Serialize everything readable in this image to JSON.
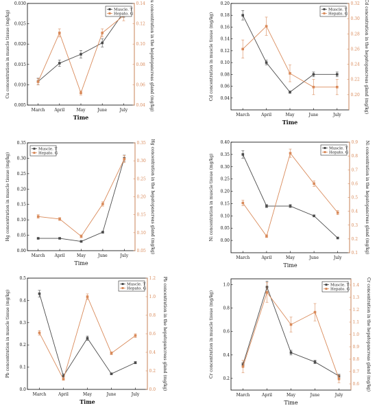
{
  "colors": {
    "muscle": "#4a4a4a",
    "hepato": "#d98a5a",
    "axis": "#000000"
  },
  "chart_data": [
    {
      "type": "line",
      "categories": [
        "March",
        "April",
        "May",
        "June",
        "July"
      ],
      "xlabel": "Time",
      "ylabel": "Cu concentration in muscle tissue (mg/kg)",
      "y2label": "Cu concentration in the hepatopancreas gland (mg/kg)",
      "ylim": [
        0.005,
        0.03
      ],
      "yticks": [
        "0.005",
        "0.010",
        "0.015",
        "0.020",
        "0.025",
        "0.030"
      ],
      "y2lim": [
        0.04,
        0.14
      ],
      "y2ticks": [
        "0.04",
        "0.06",
        "0.08",
        "0.10",
        "0.12",
        "0.14"
      ],
      "legend_position": "top-right",
      "series": [
        {
          "name": "Muscle. T",
          "axis": "left",
          "values": [
            0.0108,
            0.0153,
            0.0175,
            0.0203,
            0.0278
          ],
          "errors": [
            0.0008,
            0.0008,
            0.0009,
            0.001,
            0.0012
          ]
        },
        {
          "name": "Hepato. G",
          "axis": "right",
          "values": [
            0.063,
            0.111,
            0.052,
            0.111,
            0.128
          ],
          "errors": [
            0.003,
            0.004,
            0.002,
            0.004,
            0.005
          ]
        }
      ]
    },
    {
      "type": "line",
      "categories": [
        "March",
        "April",
        "May",
        "June",
        "July"
      ],
      "xlabel": "Time",
      "ylabel": "Cd concentration in muscle tissue (mg/kg)",
      "y2label": "Cd concentration in the hepatopancreas gland (mg/kg)",
      "ylim": [
        0.02,
        0.2
      ],
      "yticks": [
        "0.04",
        "0.06",
        "0.08",
        "0.10",
        "0.12",
        "0.14",
        "0.16",
        "0.18",
        "0.20"
      ],
      "y2lim": [
        0.18,
        0.32
      ],
      "y2ticks": [
        "0.20",
        "0.22",
        "0.24",
        "0.26",
        "0.28",
        "0.30",
        "0.32"
      ],
      "legend_position": "top-right",
      "series": [
        {
          "name": "Muscle. T",
          "axis": "left",
          "values": [
            0.18,
            0.1,
            0.05,
            0.08,
            0.08
          ],
          "errors": [
            0.008,
            0.004,
            0.002,
            0.004,
            0.004
          ]
        },
        {
          "name": "Hepato. G",
          "axis": "right",
          "values": [
            0.26,
            0.29,
            0.228,
            0.21,
            0.21
          ],
          "errors": [
            0.012,
            0.012,
            0.011,
            0.01,
            0.01
          ]
        }
      ]
    },
    {
      "type": "line",
      "categories": [
        "March",
        "April",
        "May",
        "June",
        "July"
      ],
      "xlabel": "Time",
      "ylabel": "Hg concentration in muscle tissue (mg/kg)",
      "y2label": "Hg concentration in the hepatopancreas gland (mg/kg)",
      "ylim": [
        0.0,
        0.35
      ],
      "yticks": [
        "0.00",
        "0.05",
        "0.10",
        "0.15",
        "0.20",
        "0.25",
        "0.30",
        "0.35"
      ],
      "y2lim": [
        0.05,
        0.35
      ],
      "y2ticks": [
        "0.05",
        "0.10",
        "0.15",
        "0.20",
        "0.25",
        "0.30",
        "0.35"
      ],
      "legend_position": "top-left",
      "series": [
        {
          "name": "Muscle. T",
          "axis": "left",
          "values": [
            0.04,
            0.04,
            0.03,
            0.06,
            0.3
          ],
          "errors": [
            0.002,
            0.002,
            0.002,
            0.003,
            0.01
          ]
        },
        {
          "name": "Hepato. G",
          "axis": "right",
          "values": [
            0.145,
            0.138,
            0.09,
            0.18,
            0.305
          ],
          "errors": [
            0.005,
            0.004,
            0.004,
            0.006,
            0.01
          ]
        }
      ]
    },
    {
      "type": "line",
      "categories": [
        "March",
        "April",
        "May",
        "June",
        "July"
      ],
      "xlabel": "Time",
      "ylabel": "Ni concentration in muscle tissue (mg/kg)",
      "y2label": "Ni concentration in the hepatopancreas gland (mg/kg)",
      "ylim": [
        -0.05,
        0.4
      ],
      "yticks": [
        "0.00",
        "0.05",
        "0.10",
        "0.15",
        "0.20",
        "0.25",
        "0.30",
        "0.35",
        "0.40"
      ],
      "y2lim": [
        0.1,
        0.9
      ],
      "y2ticks": [
        "0.1",
        "0.2",
        "0.3",
        "0.4",
        "0.5",
        "0.6",
        "0.7",
        "0.8",
        "0.9"
      ],
      "legend_position": "top-right",
      "series": [
        {
          "name": "Muscle. T",
          "axis": "left",
          "values": [
            0.35,
            0.14,
            0.14,
            0.1,
            0.01
          ],
          "errors": [
            0.015,
            0.006,
            0.006,
            0.004,
            0.002
          ]
        },
        {
          "name": "Hepato. G",
          "axis": "right",
          "values": [
            0.46,
            0.22,
            0.82,
            0.6,
            0.39
          ],
          "errors": [
            0.02,
            0.01,
            0.03,
            0.02,
            0.015
          ]
        }
      ]
    },
    {
      "type": "line",
      "categories": [
        "March",
        "April",
        "May",
        "June",
        "July"
      ],
      "xlabel": "Time",
      "ylabel": "Pb concentration in muscle tissue (mg/kg)",
      "y2label": "Pb concentration in the hepatopancreas gland (mg/kg)",
      "ylim": [
        0.0,
        0.5
      ],
      "yticks": [
        "0.0",
        "0.1",
        "0.2",
        "0.3",
        "0.4",
        "0.5"
      ],
      "y2lim": [
        0.0,
        1.2
      ],
      "y2ticks": [
        "0.0",
        "0.2",
        "0.4",
        "0.6",
        "0.8",
        "1.0",
        "1.2"
      ],
      "legend_position": "top-right",
      "series": [
        {
          "name": "Muscle. T",
          "axis": "left",
          "values": [
            0.43,
            0.06,
            0.23,
            0.07,
            0.12
          ],
          "errors": [
            0.015,
            0.01,
            0.01,
            0.003,
            0.005
          ]
        },
        {
          "name": "Hepato. G",
          "axis": "right",
          "values": [
            0.61,
            0.11,
            1.0,
            0.39,
            0.58
          ],
          "errors": [
            0.025,
            0.01,
            0.03,
            0.015,
            0.02
          ]
        }
      ]
    },
    {
      "type": "line",
      "categories": [
        "March",
        "April",
        "May",
        "June",
        "July"
      ],
      "xlabel": "Time",
      "ylabel": "Cr concentration in muscle tissue (mg/kg)",
      "y2label": "Cr concentration in the hepatopancreas gland (mg/kg)",
      "ylim": [
        0.1,
        1.05
      ],
      "yticks": [
        "0.2",
        "0.4",
        "0.6",
        "0.8",
        "1.0"
      ],
      "y2lim": [
        0.55,
        1.45
      ],
      "y2ticks": [
        "0.6",
        "0.7",
        "0.8",
        "0.9",
        "1.0",
        "1.1",
        "1.2",
        "1.3",
        "1.4"
      ],
      "legend_position": "top-right",
      "series": [
        {
          "name": "Muscle. T",
          "axis": "left",
          "values": [
            0.32,
            0.98,
            0.42,
            0.34,
            0.22
          ],
          "errors": [
            0.015,
            0.05,
            0.02,
            0.015,
            0.015
          ]
        },
        {
          "name": "Hepato. G",
          "axis": "right",
          "values": [
            0.74,
            1.34,
            1.08,
            1.18,
            0.64
          ],
          "errors": [
            0.05,
            0.08,
            0.06,
            0.07,
            0.03
          ]
        }
      ]
    }
  ]
}
